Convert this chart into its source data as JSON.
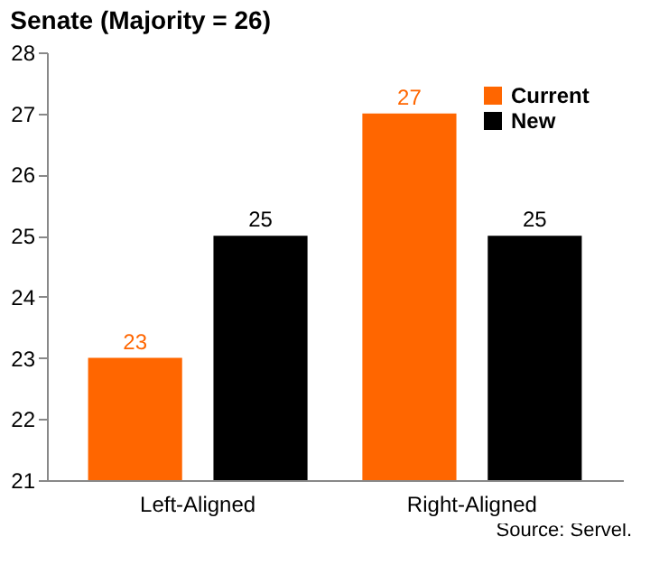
{
  "chart_data": {
    "type": "bar",
    "title": "Senate (Majority = 26)",
    "categories": [
      "Left-Aligned",
      "Right-Aligned"
    ],
    "series": [
      {
        "name": "Current",
        "color": "#ff6600",
        "values": [
          23,
          27
        ]
      },
      {
        "name": "New",
        "color": "#000000",
        "values": [
          25,
          25
        ]
      }
    ],
    "ylim": [
      21,
      28
    ],
    "yticks": [
      21,
      22,
      23,
      24,
      25,
      26,
      27,
      28
    ],
    "data_labels": true,
    "legend": "top right",
    "grid": false,
    "annotations": [
      "Source: Servel."
    ]
  }
}
